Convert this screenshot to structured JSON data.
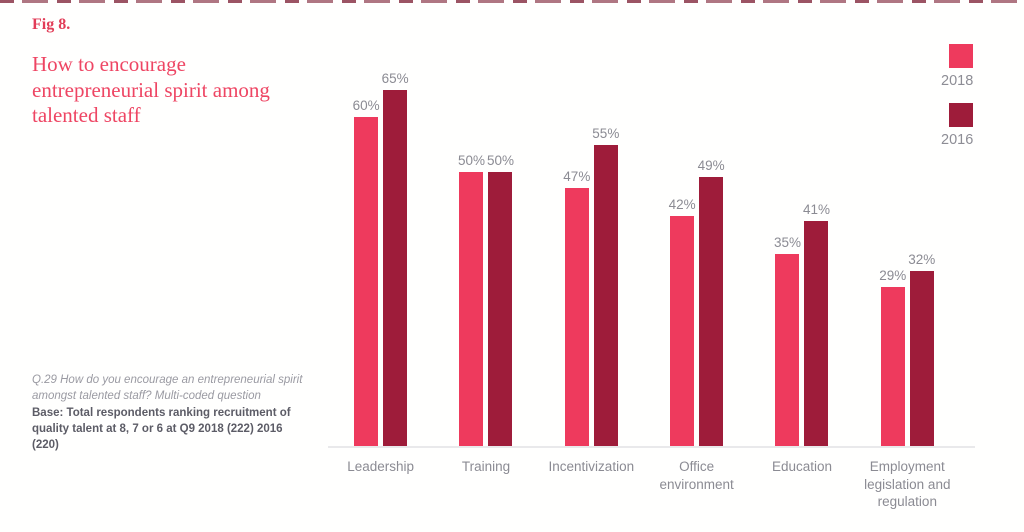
{
  "figure": {
    "label": "Fig 8.",
    "title": "How to encourage entrepreneurial spirit among talented staff"
  },
  "footnote": {
    "question": "Q.29 How do you encourage an entrepreneurial spirit amongst talented staff? Multi-coded question",
    "base": "Base: Total respondents ranking recruitment of quality talent at 8, 7 or 6 at Q9 2018 (222) 2016 (220)"
  },
  "legend": [
    {
      "label": "2018",
      "color": "#ee3a5d"
    },
    {
      "label": "2016",
      "color": "#9e1c3a"
    }
  ],
  "colors": {
    "accent_pink": "#ee3a5d",
    "accent_maroon": "#9e1c3a",
    "title_red": "#ee4563",
    "label_gray": "#8b8b93",
    "axis_gray": "#e9e9eb"
  },
  "chart_data": {
    "type": "bar",
    "categories": [
      "Leadership",
      "Training",
      "Incentivization",
      "Office environment",
      "Education",
      "Employment legislation and regulation"
    ],
    "series": [
      {
        "name": "2018",
        "color": "#ee3a5d",
        "values": [
          60,
          50,
          47,
          42,
          35,
          29
        ]
      },
      {
        "name": "2016",
        "color": "#9e1c3a",
        "values": [
          65,
          50,
          55,
          49,
          41,
          32
        ]
      }
    ],
    "value_suffix": "%",
    "title": "How to encourage entrepreneurial spirit among talented staff",
    "xlabel": "",
    "ylabel": "",
    "ylim": [
      0,
      100
    ],
    "grid": false,
    "value_labels": true,
    "legend_position": "top-right"
  }
}
